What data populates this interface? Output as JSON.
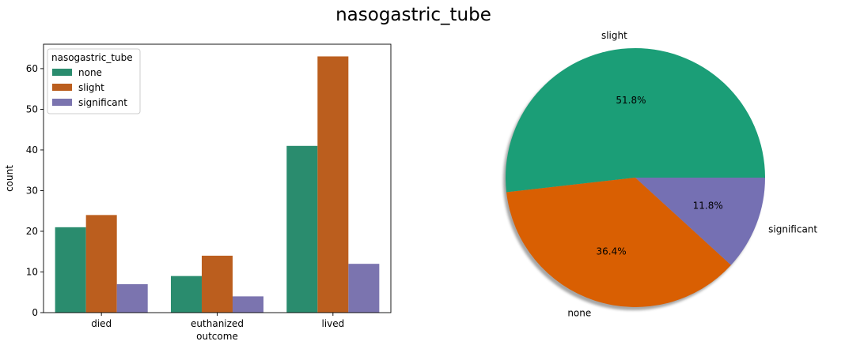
{
  "figure": {
    "title": "nasogastric_tube"
  },
  "chart_data": [
    {
      "type": "bar",
      "categories": [
        "died",
        "euthanized",
        "lived"
      ],
      "series": [
        {
          "name": "none",
          "values": [
            21,
            9,
            41
          ],
          "color": "#2a8c6e"
        },
        {
          "name": "slight",
          "values": [
            24,
            14,
            63
          ],
          "color": "#bb5e1e"
        },
        {
          "name": "significant",
          "values": [
            7,
            4,
            12
          ],
          "color": "#7b74af"
        }
      ],
      "xlabel": "outcome",
      "ylabel": "count",
      "ylim": [
        0,
        66
      ],
      "yticks": [
        0,
        10,
        20,
        30,
        40,
        50,
        60
      ],
      "legend": {
        "title": "nasogastric_tube",
        "placement": "upper-left"
      },
      "grid": false
    },
    {
      "type": "pie",
      "labels": [
        "slight",
        "none",
        "significant"
      ],
      "values": [
        51.8,
        36.4,
        11.8
      ],
      "value_labels": [
        "51.8%",
        "36.4%",
        "11.8%"
      ],
      "colors": [
        "#1b9e77",
        "#d95f02",
        "#7570b3"
      ],
      "shadow": true
    }
  ]
}
